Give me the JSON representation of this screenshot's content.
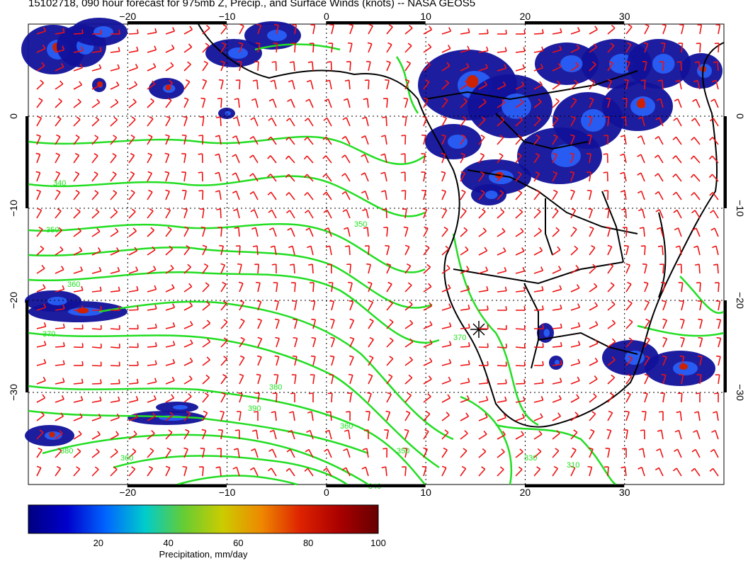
{
  "title": "15102718, 090 hour forecast for 975mb Z, Precip., and Surface Winds (knots) -- NASA GEOS5",
  "map": {
    "lon_range": [
      -30,
      40
    ],
    "lat_range": [
      -40,
      10
    ],
    "lon_ticks": [
      -20,
      -10,
      0,
      10,
      20,
      30
    ],
    "lat_ticks": [
      0,
      -10,
      -20,
      -30
    ],
    "lon_tick_labels": [
      "−20",
      "−10",
      "0",
      "10",
      "20",
      "30"
    ],
    "lat_tick_labels": [
      "0",
      "−10",
      "−20",
      "−30"
    ],
    "colors": {
      "coast": "#000000",
      "contour": "#22dd22",
      "barb": "#ee1111",
      "grid": "#000000"
    }
  },
  "contour_labels": [
    "340",
    "350",
    "360",
    "370",
    "380",
    "390",
    "360",
    "350",
    "340",
    "330",
    "310",
    "370",
    "380",
    "360",
    "350"
  ],
  "colorbar": {
    "min": 0,
    "max": 100,
    "ticks": [
      "20",
      "40",
      "60",
      "80",
      "100"
    ],
    "label": "Precipitation, mm/day",
    "stops": [
      "#000080",
      "#0000cc",
      "#0066ff",
      "#00cccc",
      "#66cc33",
      "#cccc00",
      "#ee8800",
      "#dd2200",
      "#aa0000",
      "#660000"
    ]
  }
}
